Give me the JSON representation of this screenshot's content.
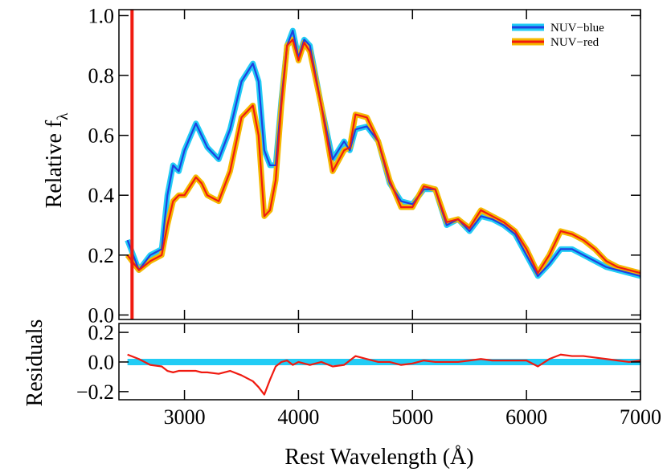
{
  "chart_data": [
    {
      "type": "line",
      "y_label": "Relative f",
      "y_label_subscript": "λ",
      "x": [
        2500,
        2600,
        2700,
        2800,
        2850,
        2900,
        2950,
        3000,
        3100,
        3150,
        3200,
        3300,
        3400,
        3500,
        3600,
        3650,
        3700,
        3750,
        3800,
        3850,
        3900,
        3950,
        4000,
        4050,
        4100,
        4200,
        4300,
        4400,
        4450,
        4500,
        4600,
        4700,
        4800,
        4900,
        5000,
        5100,
        5200,
        5300,
        5400,
        5500,
        5600,
        5700,
        5800,
        5900,
        6000,
        6100,
        6200,
        6300,
        6400,
        6500,
        6600,
        6700,
        6800,
        6900,
        7000
      ],
      "series": [
        {
          "name": "NUV−blue",
          "color": "#1f3fe0",
          "band_color": "#22ccf5",
          "values": [
            0.25,
            0.15,
            0.2,
            0.22,
            0.4,
            0.5,
            0.48,
            0.55,
            0.64,
            0.6,
            0.56,
            0.52,
            0.62,
            0.78,
            0.84,
            0.78,
            0.55,
            0.5,
            0.5,
            0.72,
            0.9,
            0.95,
            0.86,
            0.92,
            0.9,
            0.7,
            0.52,
            0.58,
            0.55,
            0.62,
            0.63,
            0.58,
            0.44,
            0.38,
            0.37,
            0.42,
            0.42,
            0.3,
            0.32,
            0.28,
            0.33,
            0.32,
            0.3,
            0.27,
            0.2,
            0.13,
            0.17,
            0.22,
            0.22,
            0.2,
            0.18,
            0.16,
            0.15,
            0.14,
            0.13
          ]
        },
        {
          "name": "NUV−red",
          "color": "#f01a10",
          "band_color": "#f5b800",
          "values": [
            0.2,
            0.15,
            0.18,
            0.2,
            0.3,
            0.38,
            0.4,
            0.4,
            0.46,
            0.44,
            0.4,
            0.38,
            0.48,
            0.66,
            0.7,
            0.6,
            0.33,
            0.35,
            0.45,
            0.7,
            0.9,
            0.92,
            0.85,
            0.91,
            0.88,
            0.7,
            0.48,
            0.55,
            0.56,
            0.67,
            0.66,
            0.58,
            0.45,
            0.36,
            0.36,
            0.43,
            0.42,
            0.31,
            0.32,
            0.29,
            0.35,
            0.33,
            0.31,
            0.28,
            0.22,
            0.14,
            0.2,
            0.28,
            0.27,
            0.25,
            0.22,
            0.18,
            0.16,
            0.15,
            0.14
          ]
        }
      ],
      "vline": 2540,
      "vline_color": "#f01a10",
      "xlim": [
        2425,
        7000
      ],
      "xticks": [
        3000,
        4000,
        5000,
        6000,
        7000
      ],
      "ylim": [
        -0.015,
        1.02
      ],
      "yticks": [
        {
          "value": 0,
          "label": "0.0"
        },
        {
          "value": 0.2,
          "label": "0.2"
        },
        {
          "value": 0.4,
          "label": "0.4"
        },
        {
          "value": 0.6,
          "label": "0.6"
        },
        {
          "value": 0.8,
          "label": "0.8"
        },
        {
          "value": 1,
          "label": "1.0"
        }
      ],
      "legend": "upper right"
    },
    {
      "type": "line",
      "y_label": "Residuals",
      "x_label": "Rest Wavelength (Å)",
      "x": [
        2500,
        2600,
        2700,
        2800,
        2850,
        2900,
        2950,
        3000,
        3100,
        3150,
        3200,
        3300,
        3400,
        3500,
        3600,
        3650,
        3700,
        3750,
        3800,
        3850,
        3900,
        3950,
        4000,
        4050,
        4100,
        4200,
        4300,
        4400,
        4450,
        4500,
        4600,
        4700,
        4800,
        4900,
        5000,
        5100,
        5200,
        5300,
        5400,
        5500,
        5600,
        5700,
        5800,
        5900,
        6000,
        6100,
        6200,
        6300,
        6400,
        6500,
        6600,
        6700,
        6800,
        6900,
        7000
      ],
      "series": [
        {
          "color": "#22ccf5",
          "values": [
            0,
            0,
            0,
            0,
            0,
            0,
            0,
            0,
            0,
            0,
            0,
            0,
            0,
            0,
            0,
            0,
            0,
            0,
            0,
            0,
            0,
            0,
            0,
            0,
            0,
            0,
            0,
            0,
            0,
            0,
            0,
            0,
            0,
            0,
            0,
            0,
            0,
            0,
            0,
            0,
            0,
            0,
            0,
            0,
            0,
            0,
            0,
            0,
            0,
            0,
            0,
            0,
            0,
            0,
            0
          ]
        },
        {
          "color": "#f01a10",
          "values": [
            0.05,
            0.02,
            -0.02,
            -0.03,
            -0.06,
            -0.07,
            -0.06,
            -0.06,
            -0.06,
            -0.07,
            -0.07,
            -0.08,
            -0.06,
            -0.09,
            -0.13,
            -0.17,
            -0.22,
            -0.12,
            -0.03,
            0.0,
            0.01,
            -0.02,
            0.0,
            -0.01,
            -0.02,
            0.0,
            -0.03,
            -0.02,
            0.01,
            0.04,
            0.02,
            0.0,
            0.0,
            -0.02,
            -0.01,
            0.01,
            0.0,
            0.0,
            0.0,
            0.01,
            0.02,
            0.01,
            0.01,
            0.01,
            0.01,
            -0.03,
            0.02,
            0.05,
            0.04,
            0.04,
            0.03,
            0.02,
            0.01,
            0.0,
            0.01
          ]
        }
      ],
      "xlim": [
        2425,
        7000
      ],
      "xticks": [
        3000,
        4000,
        5000,
        6000,
        7000
      ],
      "ylim": [
        -0.255,
        0.26
      ],
      "yticks": [
        {
          "value": -0.2,
          "label": "−0.2"
        },
        {
          "value": 0,
          "label": "0.0"
        },
        {
          "value": 0.2,
          "label": "0.2"
        }
      ]
    }
  ]
}
